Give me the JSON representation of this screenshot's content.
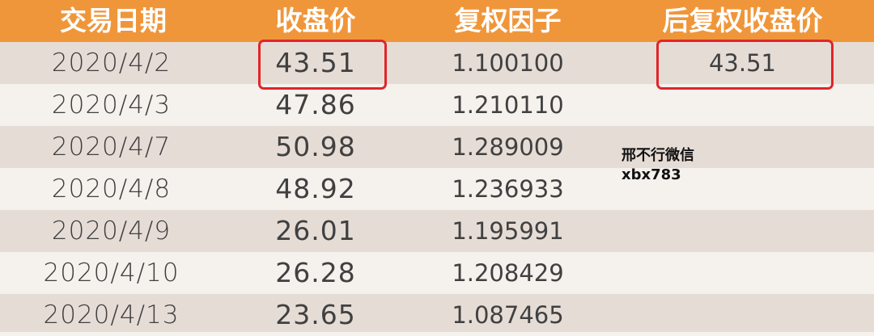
{
  "headers": [
    "交易日期",
    "收盘价",
    "复权因子",
    "后复权收盘价"
  ],
  "rows": [
    {
      "date": "2020/4/2",
      "close": "43.51",
      "factor": "1.100100",
      "adj": "43.51"
    },
    {
      "date": "2020/4/3",
      "close": "47.86",
      "factor": "1.210110",
      "adj": ""
    },
    {
      "date": "2020/4/7",
      "close": "50.98",
      "factor": "1.289009",
      "adj": ""
    },
    {
      "date": "2020/4/8",
      "close": "48.92",
      "factor": "1.236933",
      "adj": ""
    },
    {
      "date": "2020/4/9",
      "close": "26.01",
      "factor": "1.195991",
      "adj": ""
    },
    {
      "date": "2020/4/10",
      "close": "26.28",
      "factor": "1.208429",
      "adj": ""
    },
    {
      "date": "2020/4/13",
      "close": "23.65",
      "factor": "1.087465",
      "adj": ""
    }
  ],
  "watermark": {
    "line1": "邢不行微信",
    "line2": "xbx783"
  },
  "colors": {
    "header": "#f0963a",
    "row_dark": "#e6dcd6",
    "row_light": "#f5f1ed",
    "highlight": "#e0252a"
  }
}
